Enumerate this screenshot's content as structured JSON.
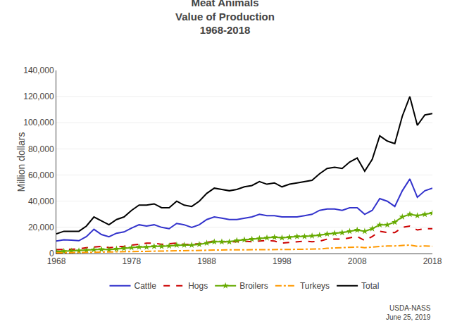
{
  "chart_data": {
    "type": "line",
    "title": "Meat Animals\nValue of Production\n1968-2018",
    "ylabel": "Million dollars",
    "annotations": [
      "USDA-NASS\nJune 25, 2019"
    ],
    "x": [
      1968,
      1969,
      1970,
      1971,
      1972,
      1973,
      1974,
      1975,
      1976,
      1977,
      1978,
      1979,
      1980,
      1981,
      1982,
      1983,
      1984,
      1985,
      1986,
      1987,
      1988,
      1989,
      1990,
      1991,
      1992,
      1993,
      1994,
      1995,
      1996,
      1997,
      1998,
      1999,
      2000,
      2001,
      2002,
      2003,
      2004,
      2005,
      2006,
      2007,
      2008,
      2009,
      2010,
      2011,
      2012,
      2013,
      2014,
      2015,
      2016,
      2017,
      2018
    ],
    "series": [
      {
        "name": "Cattle",
        "color": "#3333cc",
        "line_style": "solid",
        "values": [
          9500,
          10500,
          10200,
          9800,
          13000,
          18500,
          14500,
          12800,
          15500,
          16500,
          19500,
          22000,
          21000,
          22000,
          20000,
          19000,
          23000,
          22000,
          20000,
          22000,
          26000,
          28000,
          27000,
          26000,
          26000,
          27000,
          28000,
          30000,
          29000,
          29000,
          28000,
          28000,
          28000,
          29000,
          30000,
          33000,
          34000,
          34000,
          33000,
          35000,
          35000,
          30000,
          33000,
          42000,
          40000,
          36000,
          48000,
          57000,
          43000,
          48000,
          50000
        ]
      },
      {
        "name": "Hogs",
        "color": "#cc0000",
        "line_style": "dashed",
        "values": [
          3000,
          3200,
          3300,
          3500,
          4500,
          5000,
          5500,
          4500,
          5000,
          5500,
          6500,
          7000,
          8000,
          8000,
          7000,
          7500,
          8000,
          7000,
          7000,
          7500,
          8500,
          9500,
          9000,
          9000,
          9000,
          9500,
          9000,
          9500,
          10000,
          9500,
          8000,
          8500,
          9000,
          9500,
          9000,
          9500,
          11000,
          11000,
          11000,
          12000,
          13000,
          10000,
          13000,
          17000,
          16000,
          16000,
          20000,
          21000,
          18000,
          19000,
          19000
        ]
      },
      {
        "name": "Broilers",
        "color": "#66aa00",
        "line_style": "solid",
        "marker": "star",
        "values": [
          1500,
          1800,
          2000,
          2100,
          2500,
          3000,
          3200,
          3000,
          3500,
          4000,
          4500,
          5000,
          5000,
          5500,
          5500,
          5800,
          6500,
          6500,
          6500,
          7000,
          8000,
          9000,
          9000,
          9000,
          10000,
          10500,
          11000,
          11500,
          12000,
          12500,
          12000,
          12500,
          13000,
          13000,
          13500,
          14000,
          15000,
          15500,
          16000,
          17000,
          18000,
          17000,
          19000,
          22000,
          22000,
          24000,
          28000,
          30000,
          29000,
          30000,
          31000
        ]
      },
      {
        "name": "Turkeys",
        "color": "#ff9900",
        "line_style": "dashdot",
        "values": [
          500,
          600,
          600,
          700,
          800,
          1000,
          1100,
          1000,
          1100,
          1200,
          1400,
          1600,
          1700,
          1700,
          1700,
          1800,
          2000,
          2000,
          2000,
          2100,
          2500,
          2700,
          2700,
          2700,
          2800,
          2800,
          2800,
          3000,
          3100,
          3100,
          3000,
          3100,
          3200,
          3300,
          3300,
          3500,
          4000,
          4200,
          4300,
          4600,
          5000,
          4500,
          5000,
          5700,
          5800,
          5800,
          6000,
          6500,
          5500,
          5800,
          5500
        ]
      },
      {
        "name": "Total",
        "color": "#000000",
        "line_style": "solid",
        "values": [
          15000,
          17000,
          17000,
          17000,
          21000,
          28000,
          25000,
          22000,
          26000,
          28000,
          33000,
          37000,
          37000,
          38000,
          35000,
          35000,
          40000,
          37000,
          36000,
          40000,
          46000,
          50000,
          49000,
          48000,
          49000,
          51000,
          52000,
          55000,
          53000,
          54000,
          51000,
          53000,
          54000,
          55000,
          56000,
          61000,
          65000,
          66000,
          65000,
          70000,
          73000,
          63000,
          72000,
          90000,
          86000,
          84000,
          105000,
          120000,
          98000,
          106000,
          107000
        ]
      }
    ],
    "xlim": [
      1968,
      2018
    ],
    "xticks": [
      1968,
      1978,
      1988,
      1998,
      2008,
      2018
    ],
    "ylim": [
      0,
      140000
    ],
    "yticks": [
      0,
      {
        "value": 20000,
        "label": "20,000"
      },
      {
        "value": 40000,
        "label": "40,000"
      },
      {
        "value": 60000,
        "label": "60,000"
      },
      {
        "value": 80000,
        "label": "80,000"
      },
      {
        "value": 100000,
        "label": "100,000"
      },
      {
        "value": 120000,
        "label": "120,000"
      },
      {
        "value": 140000,
        "label": "140,000"
      }
    ],
    "grid": true,
    "legend": "bottom"
  }
}
